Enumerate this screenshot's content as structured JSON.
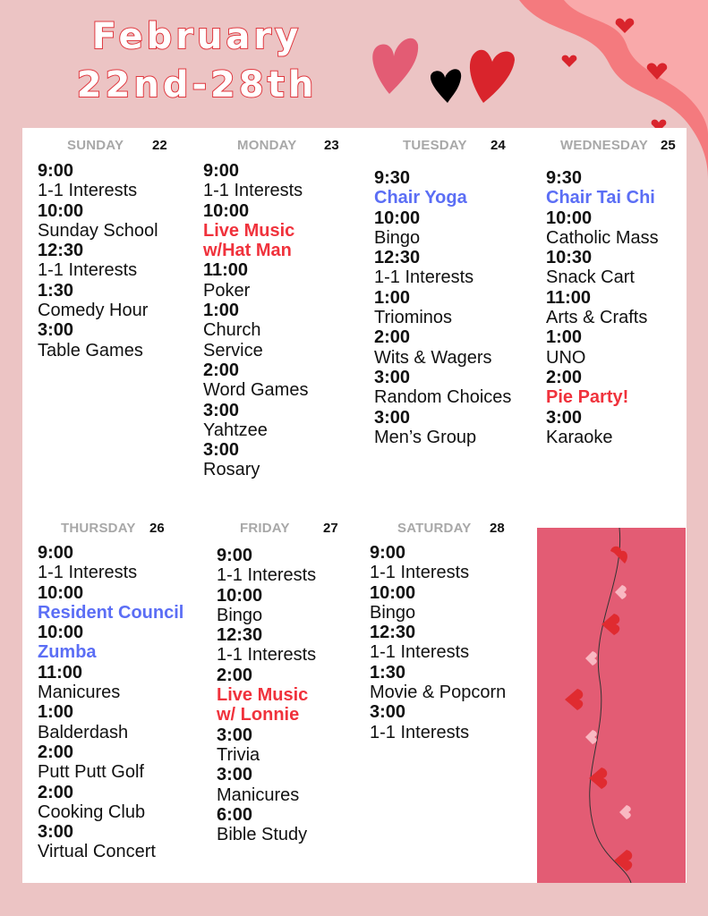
{
  "title": {
    "line1": "February",
    "line2": "22nd-28th"
  },
  "colors": {
    "background": "#ecc4c4",
    "blue": "#5b6ef5",
    "red": "#f0323c",
    "pink_box": "#e35c74"
  },
  "days": [
    {
      "name": "SUNDAY",
      "date": "22",
      "events": [
        {
          "time": "9:00",
          "title": "1-1 Interests",
          "style": "normal"
        },
        {
          "time": "10:00",
          "title": "Sunday School",
          "style": "normal"
        },
        {
          "time": "12:30",
          "title": "1-1 Interests",
          "style": "normal"
        },
        {
          "time": "1:30",
          "title": "Comedy Hour",
          "style": "normal"
        },
        {
          "time": "3:00",
          "title": "Table Games",
          "style": "normal"
        }
      ]
    },
    {
      "name": "MONDAY",
      "date": "23",
      "events": [
        {
          "time": "9:00",
          "title": "1-1 Interests",
          "style": "normal"
        },
        {
          "time": "10:00",
          "title": "Live Music w/Hat Man",
          "style": "red"
        },
        {
          "time": "11:00",
          "title": "Poker",
          "style": "normal"
        },
        {
          "time": "1:00",
          "title": "Church Service",
          "style": "normal"
        },
        {
          "time": "2:00",
          "title": "Word Games",
          "style": "normal"
        },
        {
          "time": "3:00",
          "title": "Yahtzee",
          "style": "normal"
        },
        {
          "time": "3:00",
          "title": "Rosary",
          "style": "normal"
        }
      ]
    },
    {
      "name": "TUESDAY",
      "date": "24",
      "events": [
        {
          "time": "9:30",
          "title": "Chair Yoga",
          "style": "blue"
        },
        {
          "time": "10:00",
          "title": "Bingo",
          "style": "normal"
        },
        {
          "time": "12:30",
          "title": "1-1 Interests",
          "style": "normal"
        },
        {
          "time": "1:00",
          "title": "Triominos",
          "style": "normal"
        },
        {
          "time": "2:00",
          "title": "Wits & Wagers",
          "style": "normal"
        },
        {
          "time": "3:00",
          "title": "Random Choices",
          "style": "normal"
        },
        {
          "time": "3:00",
          "title": "Men’s Group",
          "style": "normal"
        }
      ]
    },
    {
      "name": "WEDNESDAY",
      "date": "25",
      "events": [
        {
          "time": "9:30",
          "title": "Chair Tai Chi",
          "style": "blue"
        },
        {
          "time": "10:00",
          "title": "Catholic Mass",
          "style": "normal"
        },
        {
          "time": "10:30",
          "title": "Snack Cart",
          "style": "normal"
        },
        {
          "time": "11:00",
          "title": "Arts & Crafts",
          "style": "normal"
        },
        {
          "time": "1:00",
          "title": "UNO",
          "style": "normal"
        },
        {
          "time": "2:00",
          "title": "Pie Party!",
          "style": "red"
        },
        {
          "time": "3:00",
          "title": "Karaoke",
          "style": "normal"
        }
      ]
    },
    {
      "name": "THURSDAY",
      "date": "26",
      "events": [
        {
          "time": "9:00",
          "title": "1-1 Interests",
          "style": "normal"
        },
        {
          "time": "10:00",
          "title": "Resident Council",
          "style": "blue"
        },
        {
          "time": "10:00",
          "title": "Zumba",
          "style": "blue"
        },
        {
          "time": "11:00",
          "title": "Manicures",
          "style": "normal"
        },
        {
          "time": "1:00",
          "title": "Balderdash",
          "style": "normal"
        },
        {
          "time": "2:00",
          "title": "Putt Putt Golf",
          "style": "normal"
        },
        {
          "time": "2:00",
          "title": "Cooking Club",
          "style": "normal"
        },
        {
          "time": "3:00",
          "title": "Virtual Concert",
          "style": "normal"
        }
      ]
    },
    {
      "name": "FRIDAY",
      "date": "27",
      "events": [
        {
          "time": "9:00",
          "title": "1-1 Interests",
          "style": "normal"
        },
        {
          "time": "10:00",
          "title": "Bingo",
          "style": "normal"
        },
        {
          "time": "12:30",
          "title": "1-1 Interests",
          "style": "normal"
        },
        {
          "time": "2:00",
          "title": "Live Music w/ Lonnie",
          "style": "red"
        },
        {
          "time": "3:00",
          "title": "Trivia",
          "style": "normal"
        },
        {
          "time": "3:00",
          "title": "Manicures",
          "style": "normal"
        },
        {
          "time": "6:00",
          "title": "Bible Study",
          "style": "normal"
        }
      ]
    },
    {
      "name": "SATURDAY",
      "date": "28",
      "events": [
        {
          "time": "9:00",
          "title": "1-1 Interests",
          "style": "normal"
        },
        {
          "time": "10:00",
          "title": "Bingo",
          "style": "normal"
        },
        {
          "time": "12:30",
          "title": "1-1 Interests",
          "style": "normal"
        },
        {
          "time": "1:30",
          "title": "Movie & Popcorn",
          "style": "normal"
        },
        {
          "time": "3:00",
          "title": "1-1 Interests",
          "style": "normal"
        }
      ]
    }
  ]
}
